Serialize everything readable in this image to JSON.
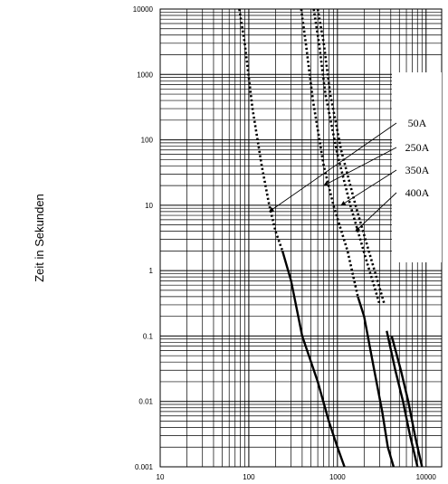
{
  "chart_data": {
    "type": "line",
    "title": "",
    "xlabel": "",
    "ylabel": "Zeit in Sekunden",
    "x_scale": "log",
    "y_scale": "log",
    "xlim": [
      10,
      15000
    ],
    "ylim": [
      0.001,
      10000
    ],
    "x_ticks": [
      "10",
      "100",
      "1000",
      "10000"
    ],
    "y_ticks": [
      "0.001",
      "0.01",
      "0.1",
      "1",
      "10",
      "100",
      "1000",
      "10000"
    ],
    "grid": true,
    "legend_placement": "right, inside plot, arrow callouts",
    "colors": {
      "curves": "#000000",
      "grid": "#000000",
      "background": "#ffffff"
    },
    "note": "dotted segment = pre-arcing region, solid segment = total clearing region",
    "series": [
      {
        "name": "50A",
        "dotted": [
          [
            78,
            10000
          ],
          [
            90,
            3000
          ],
          [
            110,
            300
          ],
          [
            140,
            40
          ],
          [
            170,
            10
          ],
          [
            200,
            4
          ],
          [
            240,
            2
          ]
        ],
        "solid": [
          [
            240,
            2
          ],
          [
            300,
            0.7
          ],
          [
            400,
            0.1
          ],
          [
            600,
            0.02
          ],
          [
            800,
            0.005
          ],
          [
            1000,
            0.002
          ],
          [
            1200,
            0.001
          ]
        ]
      },
      {
        "name": "250A",
        "dotted": [
          [
            390,
            10000
          ],
          [
            440,
            3000
          ],
          [
            530,
            400
          ],
          [
            700,
            40
          ],
          [
            900,
            10
          ],
          [
            1300,
            2
          ],
          [
            1700,
            0.4
          ]
        ],
        "solid": [
          [
            1700,
            0.4
          ],
          [
            2000,
            0.2
          ],
          [
            2600,
            0.03
          ],
          [
            3200,
            0.007
          ],
          [
            3700,
            0.002
          ],
          [
            4300,
            0.001
          ]
        ]
      },
      {
        "name": "350A",
        "dotted": [
          [
            540,
            10000
          ],
          [
            620,
            3000
          ],
          [
            730,
            500
          ],
          [
            1000,
            60
          ],
          [
            1400,
            10
          ],
          [
            2100,
            1.5
          ],
          [
            3000,
            0.3
          ]
        ],
        "solid": [
          [
            3600,
            0.12
          ],
          [
            4500,
            0.03
          ],
          [
            5500,
            0.01
          ],
          [
            6600,
            0.003
          ],
          [
            8000,
            0.001
          ]
        ]
      },
      {
        "name": "400A",
        "dotted": [
          [
            600,
            10000
          ],
          [
            700,
            3000
          ],
          [
            830,
            500
          ],
          [
            1100,
            70
          ],
          [
            1600,
            10
          ],
          [
            2400,
            1.5
          ],
          [
            3400,
            0.3
          ]
        ],
        "solid": [
          [
            4100,
            0.1
          ],
          [
            5200,
            0.03
          ],
          [
            6300,
            0.01
          ],
          [
            7500,
            0.003
          ],
          [
            9000,
            0.001
          ]
        ]
      }
    ],
    "legend": [
      {
        "label": "50A",
        "arrow_target": [
          170,
          8
        ]
      },
      {
        "label": "250A",
        "arrow_target": [
          700,
          20
        ]
      },
      {
        "label": "350A",
        "arrow_target": [
          1100,
          10
        ]
      },
      {
        "label": "400A",
        "arrow_target": [
          1600,
          4
        ]
      }
    ]
  }
}
